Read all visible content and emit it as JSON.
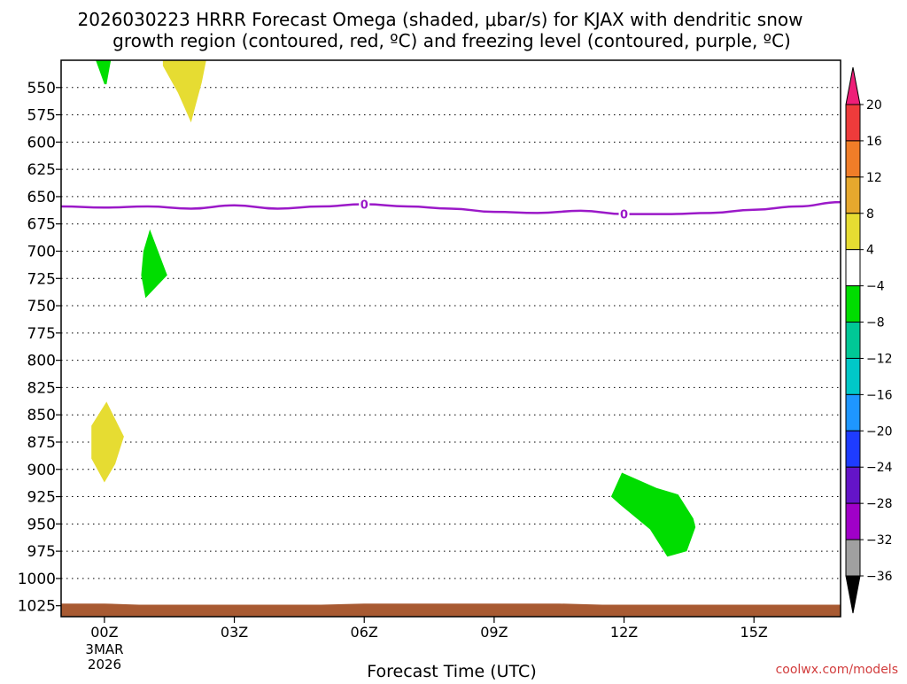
{
  "chart_data": {
    "type": "contour-time-height",
    "title_line1": "2026030223 HRRR Forecast Omega (shaded, μbar/s) for KJAX with dendritic snow",
    "title_line2": "growth region (contoured, red, ºC) and freezing level (contoured, purple, ºC)",
    "xlabel": "Forecast Time (UTC)",
    "credit": "coolwx.com/models",
    "x_axis": {
      "range_hours": [
        -1.0,
        17.0
      ],
      "ticks": [
        {
          "hour": 0,
          "label": "00Z"
        },
        {
          "hour": 3,
          "label": "03Z"
        },
        {
          "hour": 6,
          "label": "06Z"
        },
        {
          "hour": 9,
          "label": "09Z"
        },
        {
          "hour": 12,
          "label": "12Z"
        },
        {
          "hour": 15,
          "label": "15Z"
        }
      ],
      "date_line1": "3MAR",
      "date_line2": "2026"
    },
    "y_axis": {
      "range_hpa": [
        1035,
        525
      ],
      "ticks": [
        550,
        575,
        600,
        625,
        650,
        675,
        700,
        725,
        750,
        775,
        800,
        825,
        850,
        875,
        900,
        925,
        950,
        975,
        1000,
        1025
      ]
    },
    "freezing_level": {
      "label": "0",
      "label_hours": [
        6,
        12
      ],
      "points": [
        {
          "hour": -1,
          "hpa": 659
        },
        {
          "hour": 0,
          "hpa": 660
        },
        {
          "hour": 1,
          "hpa": 659
        },
        {
          "hour": 2,
          "hpa": 661
        },
        {
          "hour": 3,
          "hpa": 658
        },
        {
          "hour": 4,
          "hpa": 661
        },
        {
          "hour": 5,
          "hpa": 659
        },
        {
          "hour": 6,
          "hpa": 657
        },
        {
          "hour": 7,
          "hpa": 659
        },
        {
          "hour": 8,
          "hpa": 661
        },
        {
          "hour": 9,
          "hpa": 664
        },
        {
          "hour": 10,
          "hpa": 665
        },
        {
          "hour": 11,
          "hpa": 663
        },
        {
          "hour": 12,
          "hpa": 666
        },
        {
          "hour": 13,
          "hpa": 666
        },
        {
          "hour": 14,
          "hpa": 665
        },
        {
          "hour": 15,
          "hpa": 662
        },
        {
          "hour": 16,
          "hpa": 659
        },
        {
          "hour": 17,
          "hpa": 655
        }
      ]
    },
    "shaded_regions": [
      {
        "name": "green-top-00z",
        "color": "#00dd00",
        "points": [
          [
            -0.2,
            525
          ],
          [
            0.15,
            525
          ],
          [
            0.05,
            547
          ],
          [
            0.0,
            547
          ]
        ]
      },
      {
        "name": "yellow-top-02z",
        "color": "#e6dc32",
        "points": [
          [
            1.35,
            525
          ],
          [
            2.35,
            525
          ],
          [
            2.25,
            545
          ],
          [
            2.0,
            582
          ],
          [
            1.7,
            555
          ],
          [
            1.35,
            530
          ]
        ]
      },
      {
        "name": "green-mid-01z",
        "color": "#00dd00",
        "points": [
          [
            1.05,
            680
          ],
          [
            1.45,
            722
          ],
          [
            0.95,
            743
          ],
          [
            0.85,
            722
          ],
          [
            0.9,
            700
          ]
        ]
      },
      {
        "name": "yellow-low-00z",
        "color": "#e6dc32",
        "points": [
          [
            0.05,
            838
          ],
          [
            0.45,
            870
          ],
          [
            0.25,
            895
          ],
          [
            0.0,
            912
          ],
          [
            -0.3,
            890
          ],
          [
            -0.3,
            860
          ]
        ]
      },
      {
        "name": "green-low-12z",
        "color": "#00dd00",
        "points": [
          [
            11.95,
            903
          ],
          [
            12.75,
            917
          ],
          [
            13.25,
            923
          ],
          [
            13.6,
            945
          ],
          [
            13.65,
            953
          ],
          [
            13.45,
            975
          ],
          [
            13.0,
            980
          ],
          [
            12.6,
            955
          ],
          [
            11.9,
            932
          ],
          [
            11.7,
            925
          ]
        ]
      }
    ],
    "terrain": {
      "color": "#a85a32",
      "points": [
        {
          "hour": -1,
          "hpa": 1023
        },
        {
          "hour": 0,
          "hpa": 1023
        },
        {
          "hour": 0.8,
          "hpa": 1024
        },
        {
          "hour": 5,
          "hpa": 1024
        },
        {
          "hour": 6,
          "hpa": 1023
        },
        {
          "hour": 10.5,
          "hpa": 1023
        },
        {
          "hour": 11.5,
          "hpa": 1024
        },
        {
          "hour": 17,
          "hpa": 1024
        }
      ]
    },
    "colorbar": {
      "labels": [
        "20",
        "16",
        "12",
        "8",
        "4",
        "−4",
        "−8",
        "−12",
        "−16",
        "−20",
        "−24",
        "−28",
        "−32",
        "−36"
      ],
      "segments": [
        {
          "from": 20,
          "to": 16,
          "color": "#ee3b3b"
        },
        {
          "from": 16,
          "to": 12,
          "color": "#f07d28"
        },
        {
          "from": 12,
          "to": 8,
          "color": "#e6a82d"
        },
        {
          "from": 8,
          "to": 4,
          "color": "#e6dc32"
        },
        {
          "from": 4,
          "to": -4,
          "color": "#ffffff"
        },
        {
          "from": -4,
          "to": -8,
          "color": "#00dd00"
        },
        {
          "from": -8,
          "to": -12,
          "color": "#00c896"
        },
        {
          "from": -12,
          "to": -16,
          "color": "#00c8c8"
        },
        {
          "from": -16,
          "to": -20,
          "color": "#1e96ff"
        },
        {
          "from": -20,
          "to": -24,
          "color": "#1e3cff"
        },
        {
          "from": -24,
          "to": -28,
          "color": "#6414c8"
        },
        {
          "from": -28,
          "to": -32,
          "color": "#a000c8"
        },
        {
          "from": -32,
          "to": -36,
          "color": "#a0a0a0"
        }
      ],
      "top_arrow_color": "#ee1e78",
      "bottom_arrow_color": "#000000"
    }
  }
}
